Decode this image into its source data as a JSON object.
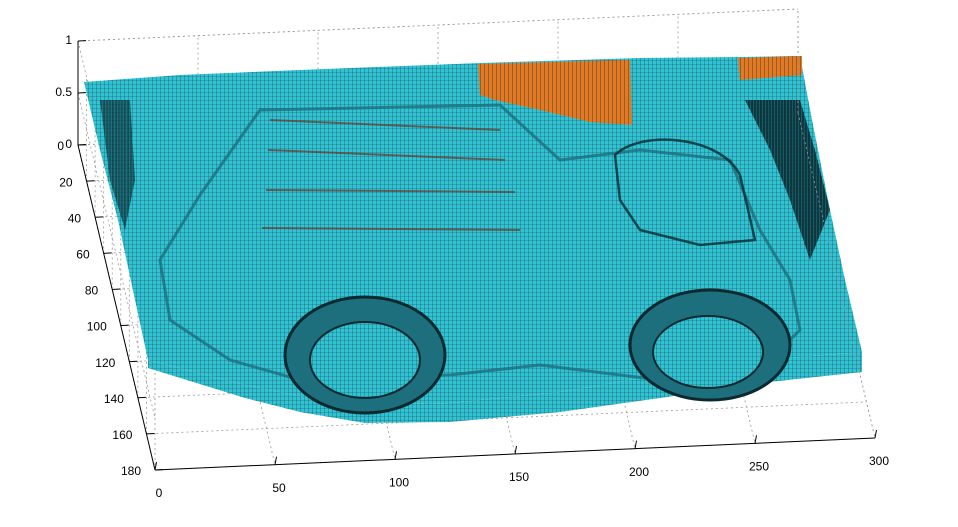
{
  "chart_data": {
    "type": "surface",
    "title": "",
    "xlabel": "",
    "ylabel": "",
    "zlabel": "",
    "x_ticks": [
      "0",
      "50",
      "100",
      "150",
      "200",
      "250",
      "300"
    ],
    "y_ticks": [
      "0",
      "20",
      "40",
      "60",
      "80",
      "100",
      "120",
      "140",
      "160",
      "180"
    ],
    "z_ticks": [
      "0",
      "0.5",
      "1"
    ],
    "xlim": [
      0,
      300
    ],
    "ylim": [
      0,
      180
    ],
    "zlim": [
      0,
      1
    ],
    "grid": true,
    "box": true,
    "surface_baseline_height": 0.5,
    "colors": {
      "surface_main": "#2ec4d6",
      "surface_dark": "#1d6f7d",
      "surface_shadow": "#0b2a30",
      "surface_edge": "#2a3a3c",
      "surface_highlight": "#e07a24",
      "grid_line": "#9a9a9a",
      "axis_line": "#000000"
    }
  }
}
